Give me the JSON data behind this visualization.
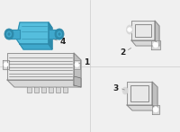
{
  "bg_color": "#f0f0f0",
  "line_color": "#888888",
  "dark_line": "#666666",
  "face_light": "#e8e8e8",
  "face_mid": "#d8d8d8",
  "face_dark": "#c0c0c0",
  "highlight_color": "#55bedd",
  "highlight_dark": "#2e8aaa",
  "highlight_mid": "#3fa8cc",
  "label_color": "#222222",
  "label_size": 6.5,
  "divider_color": "#cccccc"
}
